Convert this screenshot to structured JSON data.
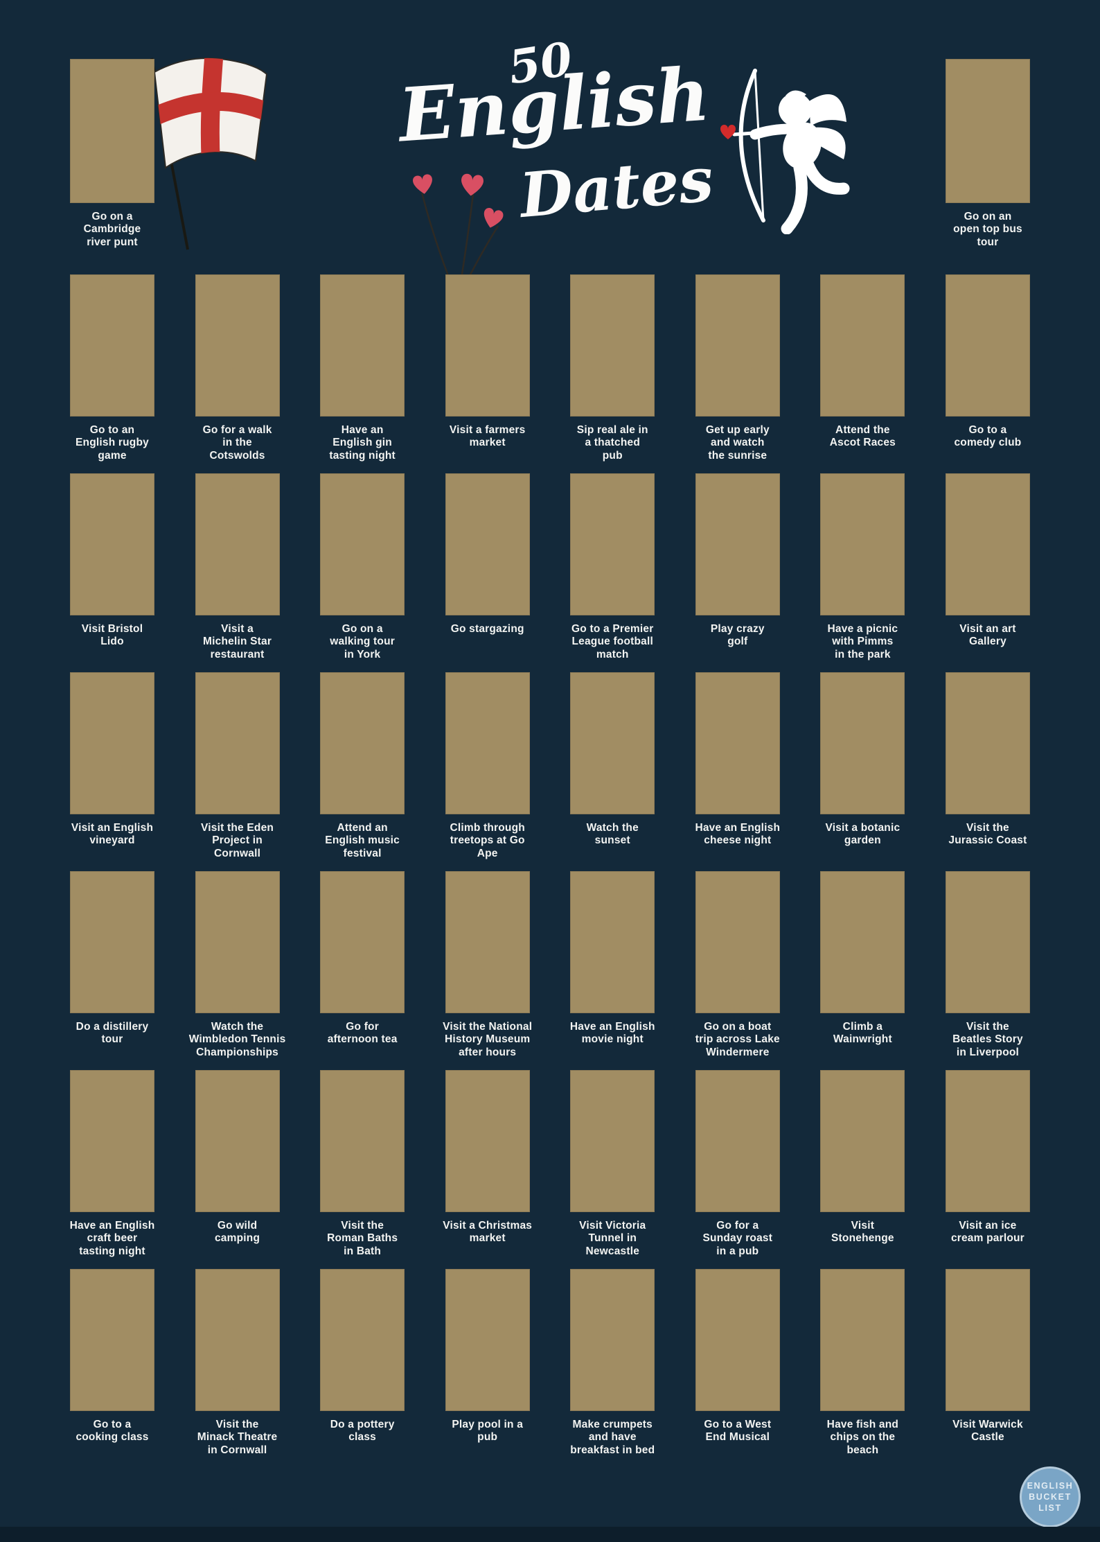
{
  "title": {
    "number": "50",
    "main": "English",
    "sub": "Dates"
  },
  "colors": {
    "background": "#13293a",
    "scratch_panel_gold": "#a18d63",
    "label_text": "#f3f4f2",
    "flag_cross_red": "#c5342f",
    "heart_red": "#d94f63",
    "logo_blue": "#7aa5c6",
    "footer_strip": "#0d1e2b"
  },
  "icons": [
    "england-flag-icon",
    "cupid-icon",
    "heart-flowers-icon"
  ],
  "top_left_label": "Go on a\nCambridge\nriver punt",
  "top_right_label": "Go on an\nopen top bus\ntour",
  "grid_labels": [
    "Go to an\nEnglish rugby\ngame",
    "Go for a walk\nin the\nCotswolds",
    "Have an\nEnglish gin\ntasting night",
    "Visit a farmers\nmarket",
    "Sip real ale in\na thatched\npub",
    "Get up early\nand watch\nthe sunrise",
    "Attend the\nAscot Races",
    "Go to a\ncomedy club",
    "Visit Bristol\nLido",
    "Visit a\nMichelin Star\nrestaurant",
    "Go on a\nwalking tour\nin York",
    "Go stargazing",
    "Go to a Premier\nLeague football\nmatch",
    "Play crazy\ngolf",
    "Have a picnic\nwith Pimms\nin the park",
    "Visit an art\nGallery",
    "Visit an English\nvineyard",
    "Visit the Eden\nProject in\nCornwall",
    "Attend an\nEnglish music\nfestival",
    "Climb through\ntreetops at Go\nApe",
    "Watch the\nsunset",
    "Have an English\ncheese night",
    "Visit a botanic\ngarden",
    "Visit the\nJurassic Coast",
    "Do a distillery\ntour",
    "Watch the\nWimbledon Tennis\nChampionships",
    "Go for\nafternoon tea",
    "Visit the National\nHistory Museum\nafter hours",
    "Have an English\nmovie night",
    "Go on a boat\ntrip across Lake\nWindermere",
    "Climb a\nWainwright",
    "Visit the\nBeatles Story\nin Liverpool",
    "Have an English\ncraft beer\ntasting night",
    "Go wild\ncamping",
    "Visit the\nRoman Baths\nin Bath",
    "Visit a Christmas\nmarket",
    "Visit Victoria\nTunnel in\nNewcastle",
    "Go for a\nSunday roast\nin a pub",
    "Visit\nStonehenge",
    "Visit an ice\ncream parlour",
    "Go to a\ncooking class",
    "Visit the\nMinack Theatre\nin Cornwall",
    "Do a pottery\nclass",
    "Play pool in a\npub",
    "Make crumpets\nand have\nbreakfast in bed",
    "Go to a West\nEnd Musical",
    "Have fish and\nchips on the\nbeach",
    "Visit Warwick\nCastle"
  ],
  "logo": {
    "line1": "ENGLISH",
    "line2": "BUCKET",
    "line3": "LIST"
  }
}
